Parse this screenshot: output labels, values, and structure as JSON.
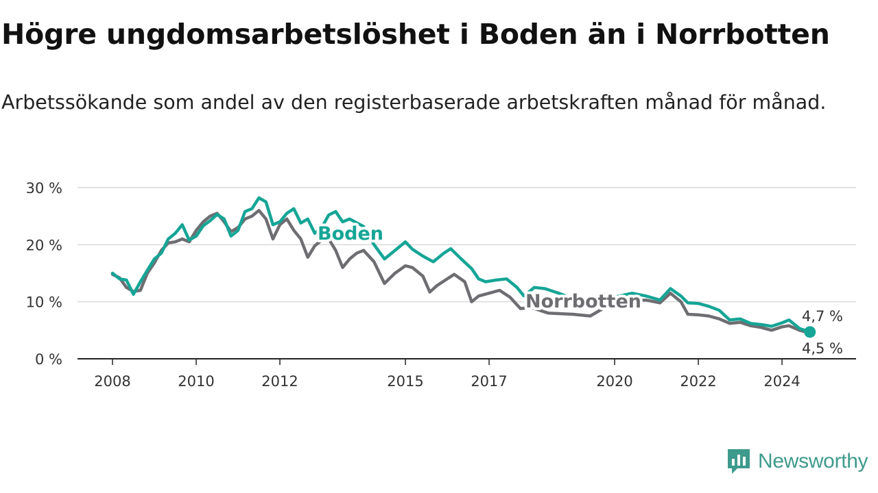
{
  "title": "Högre ungdomsarbetslöshet i Boden än i Norrbotten",
  "subtitle": "Arbetssökande som andel av den registerbaserade arbetskraften månad för månad.",
  "brand": {
    "name": "Newsworthy",
    "color": "#3e9a8c"
  },
  "colors": {
    "boden": "#16a596",
    "norrbotten": "#6e6e72",
    "grid": "#d9d9d9",
    "axis": "#222222"
  },
  "chart_data": {
    "type": "line",
    "title": "Högre ungdomsarbetslöshet i Boden än i Norrbotten",
    "ylim": [
      0,
      30
    ],
    "xlim": [
      "2008-01",
      "2024-12"
    ],
    "yticks": [
      {
        "value": 0,
        "label": "0 %"
      },
      {
        "value": 10,
        "label": "10 %"
      },
      {
        "value": 20,
        "label": "20 %"
      },
      {
        "value": 30,
        "label": "30 %"
      }
    ],
    "xticks": [
      {
        "value": "2008-01",
        "label": "2008"
      },
      {
        "value": "2010-01",
        "label": "2010"
      },
      {
        "value": "2012-01",
        "label": "2012"
      },
      {
        "value": "2015-01",
        "label": "2015"
      },
      {
        "value": "2017-01",
        "label": "2017"
      },
      {
        "value": "2020-01",
        "label": "2020"
      },
      {
        "value": "2022-01",
        "label": "2022"
      },
      {
        "value": "2024-01",
        "label": "2024"
      }
    ],
    "grid": true,
    "series": [
      {
        "name": "Boden",
        "color": "#16a596",
        "end_label": "4,7 %",
        "points": [
          [
            "2008-01",
            15.0
          ],
          [
            "2008-03",
            14.0
          ],
          [
            "2008-05",
            13.8
          ],
          [
            "2008-07",
            11.3
          ],
          [
            "2008-09",
            13.5
          ],
          [
            "2008-11",
            15.5
          ],
          [
            "2009-01",
            17.5
          ],
          [
            "2009-03",
            18.5
          ],
          [
            "2009-05",
            21.0
          ],
          [
            "2009-07",
            22.0
          ],
          [
            "2009-09",
            23.5
          ],
          [
            "2009-11",
            20.8
          ],
          [
            "2010-01",
            21.5
          ],
          [
            "2010-03",
            23.3
          ],
          [
            "2010-05",
            24.2
          ],
          [
            "2010-07",
            25.3
          ],
          [
            "2010-09",
            24.5
          ],
          [
            "2010-11",
            21.5
          ],
          [
            "2011-01",
            22.5
          ],
          [
            "2011-03",
            25.8
          ],
          [
            "2011-05",
            26.3
          ],
          [
            "2011-07",
            28.2
          ],
          [
            "2011-09",
            27.5
          ],
          [
            "2011-11",
            23.5
          ],
          [
            "2012-01",
            24.0
          ],
          [
            "2012-03",
            25.5
          ],
          [
            "2012-05",
            26.3
          ],
          [
            "2012-07",
            23.8
          ],
          [
            "2012-09",
            24.5
          ],
          [
            "2012-11",
            22.0
          ],
          [
            "2013-01",
            23.0
          ],
          [
            "2013-03",
            25.2
          ],
          [
            "2013-05",
            25.8
          ],
          [
            "2013-07",
            24.0
          ],
          [
            "2013-09",
            24.5
          ],
          [
            "2014-01",
            23.2
          ],
          [
            "2014-04",
            20.0
          ],
          [
            "2014-07",
            17.5
          ],
          [
            "2014-10",
            19.0
          ],
          [
            "2015-01",
            20.5
          ],
          [
            "2015-03",
            19.2
          ],
          [
            "2015-06",
            18.0
          ],
          [
            "2015-09",
            17.0
          ],
          [
            "2015-12",
            18.5
          ],
          [
            "2016-02",
            19.3
          ],
          [
            "2016-05",
            17.5
          ],
          [
            "2016-08",
            15.8
          ],
          [
            "2016-10",
            14.0
          ],
          [
            "2016-12",
            13.5
          ],
          [
            "2017-03",
            13.8
          ],
          [
            "2017-06",
            14.0
          ],
          [
            "2017-09",
            12.5
          ],
          [
            "2017-11",
            11.0
          ],
          [
            "2018-02",
            12.5
          ],
          [
            "2018-05",
            12.3
          ],
          [
            "2018-09",
            11.5
          ],
          [
            "2019-01",
            10.5
          ],
          [
            "2019-06",
            9.5
          ],
          [
            "2020-01",
            10.8
          ],
          [
            "2020-06",
            11.5
          ],
          [
            "2020-10",
            11.0
          ],
          [
            "2021-02",
            10.3
          ],
          [
            "2021-05",
            12.3
          ],
          [
            "2021-08",
            11.0
          ],
          [
            "2021-10",
            9.8
          ],
          [
            "2022-01",
            9.7
          ],
          [
            "2022-04",
            9.2
          ],
          [
            "2022-07",
            8.5
          ],
          [
            "2022-10",
            6.8
          ],
          [
            "2023-01",
            7.0
          ],
          [
            "2023-04",
            6.2
          ],
          [
            "2023-07",
            6.0
          ],
          [
            "2023-10",
            5.7
          ],
          [
            "2024-01",
            6.3
          ],
          [
            "2024-03",
            6.8
          ],
          [
            "2024-06",
            5.3
          ],
          [
            "2024-09",
            4.7
          ]
        ]
      },
      {
        "name": "Norrbotten",
        "color": "#6e6e72",
        "end_label": "4,5 %",
        "points": [
          [
            "2008-01",
            14.8
          ],
          [
            "2008-03",
            14.2
          ],
          [
            "2008-05",
            12.5
          ],
          [
            "2008-07",
            11.8
          ],
          [
            "2008-09",
            12.0
          ],
          [
            "2008-11",
            15.0
          ],
          [
            "2009-01",
            16.8
          ],
          [
            "2009-03",
            19.0
          ],
          [
            "2009-05",
            20.3
          ],
          [
            "2009-07",
            20.5
          ],
          [
            "2009-09",
            21.0
          ],
          [
            "2009-11",
            20.5
          ],
          [
            "2010-01",
            22.5
          ],
          [
            "2010-03",
            24.0
          ],
          [
            "2010-05",
            25.0
          ],
          [
            "2010-07",
            25.5
          ],
          [
            "2010-09",
            24.0
          ],
          [
            "2010-11",
            22.3
          ],
          [
            "2011-01",
            23.0
          ],
          [
            "2011-03",
            24.5
          ],
          [
            "2011-05",
            25.0
          ],
          [
            "2011-07",
            26.0
          ],
          [
            "2011-09",
            24.5
          ],
          [
            "2011-11",
            21.0
          ],
          [
            "2012-01",
            23.5
          ],
          [
            "2012-03",
            24.5
          ],
          [
            "2012-05",
            22.5
          ],
          [
            "2012-07",
            21.0
          ],
          [
            "2012-09",
            17.8
          ],
          [
            "2012-11",
            19.8
          ],
          [
            "2013-01",
            20.8
          ],
          [
            "2013-03",
            21.0
          ],
          [
            "2013-05",
            19.0
          ],
          [
            "2013-07",
            16.0
          ],
          [
            "2013-09",
            17.5
          ],
          [
            "2013-11",
            18.5
          ],
          [
            "2014-01",
            19.0
          ],
          [
            "2014-04",
            17.0
          ],
          [
            "2014-07",
            13.2
          ],
          [
            "2014-10",
            15.0
          ],
          [
            "2015-01",
            16.3
          ],
          [
            "2015-03",
            16.0
          ],
          [
            "2015-06",
            14.5
          ],
          [
            "2015-08",
            11.7
          ],
          [
            "2015-10",
            12.8
          ],
          [
            "2016-01",
            14.0
          ],
          [
            "2016-03",
            14.8
          ],
          [
            "2016-06",
            13.5
          ],
          [
            "2016-08",
            10.0
          ],
          [
            "2016-10",
            11.0
          ],
          [
            "2017-01",
            11.5
          ],
          [
            "2017-04",
            12.0
          ],
          [
            "2017-07",
            10.8
          ],
          [
            "2017-10",
            8.8
          ],
          [
            "2018-01",
            9.0
          ],
          [
            "2018-06",
            8.0
          ],
          [
            "2019-01",
            7.8
          ],
          [
            "2019-06",
            7.5
          ],
          [
            "2020-01",
            10.0
          ],
          [
            "2020-06",
            10.2
          ],
          [
            "2020-10",
            10.3
          ],
          [
            "2021-02",
            9.8
          ],
          [
            "2021-05",
            11.5
          ],
          [
            "2021-08",
            10.0
          ],
          [
            "2021-10",
            7.8
          ],
          [
            "2022-01",
            7.7
          ],
          [
            "2022-04",
            7.5
          ],
          [
            "2022-07",
            7.0
          ],
          [
            "2022-10",
            6.2
          ],
          [
            "2023-01",
            6.4
          ],
          [
            "2023-04",
            5.8
          ],
          [
            "2023-07",
            5.5
          ],
          [
            "2023-10",
            5.0
          ],
          [
            "2024-01",
            5.6
          ],
          [
            "2024-03",
            5.8
          ],
          [
            "2024-06",
            5.0
          ],
          [
            "2024-09",
            4.5
          ]
        ]
      }
    ]
  }
}
